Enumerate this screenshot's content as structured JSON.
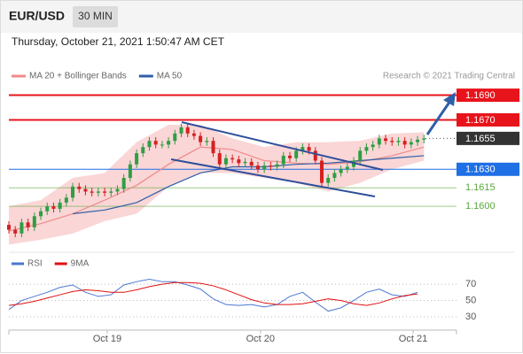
{
  "header": {
    "symbol": "EUR/USD",
    "interval": "30 MIN",
    "timestamp": "Thursday, October 21, 2021 1:50:47 AM CET",
    "source": "Research © 2021 Trading Central"
  },
  "chart_data": [
    {
      "type": "candlestick",
      "open": [
        1.1585,
        1.1581,
        1.1578,
        1.1587,
        1.1583,
        1.1592,
        1.1596,
        1.16,
        1.1598,
        1.1603,
        1.1607,
        1.1616,
        1.1614,
        1.1612,
        1.1611,
        1.1612,
        1.1611,
        1.1612,
        1.1614,
        1.1623,
        1.1634,
        1.1643,
        1.1648,
        1.1653,
        1.165,
        1.165,
        1.1653,
        1.1659,
        1.1664,
        1.1659,
        1.1657,
        1.1652,
        1.1653,
        1.1643,
        1.1634,
        1.1639,
        1.1638,
        1.1635,
        1.1636,
        1.1633,
        1.163,
        1.1633,
        1.1632,
        1.1634,
        1.1641,
        1.1639,
        1.1645,
        1.1648,
        1.1645,
        1.1637,
        1.1619,
        1.1623,
        1.1627,
        1.163,
        1.1632,
        1.1637,
        1.1645,
        1.1648,
        1.165,
        1.1655,
        1.1653,
        1.1652,
        1.1653,
        1.165,
        1.1652,
        1.1654
      ],
      "high": [
        1.1588,
        1.1584,
        1.159,
        1.159,
        1.1595,
        1.1599,
        1.1603,
        1.1603,
        1.1606,
        1.161,
        1.1619,
        1.1619,
        1.1617,
        1.1615,
        1.1615,
        1.1615,
        1.1615,
        1.1617,
        1.1626,
        1.1637,
        1.1646,
        1.1651,
        1.1656,
        1.1656,
        1.1653,
        1.1656,
        1.1662,
        1.1667,
        1.1667,
        1.1662,
        1.166,
        1.1656,
        1.1656,
        1.1646,
        1.1642,
        1.1642,
        1.1641,
        1.1639,
        1.1639,
        1.1636,
        1.1636,
        1.1636,
        1.1637,
        1.1644,
        1.1644,
        1.1648,
        1.1651,
        1.1651,
        1.1648,
        1.164,
        1.1626,
        1.163,
        1.1633,
        1.1635,
        1.164,
        1.1648,
        1.1651,
        1.1653,
        1.1658,
        1.1658,
        1.1656,
        1.1656,
        1.1656,
        1.1655,
        1.1657,
        1.1658
      ],
      "low": [
        1.1578,
        1.1575,
        1.1575,
        1.158,
        1.158,
        1.1589,
        1.1593,
        1.1595,
        1.1595,
        1.16,
        1.1604,
        1.1611,
        1.1609,
        1.1608,
        1.1608,
        1.1608,
        1.1608,
        1.1609,
        1.1611,
        1.162,
        1.1631,
        1.164,
        1.1645,
        1.1647,
        1.1647,
        1.1647,
        1.165,
        1.1656,
        1.1656,
        1.1654,
        1.1649,
        1.1649,
        1.164,
        1.1631,
        1.1631,
        1.1635,
        1.1632,
        1.1632,
        1.163,
        1.1627,
        1.1627,
        1.1629,
        1.1629,
        1.1631,
        1.1636,
        1.1636,
        1.1642,
        1.1642,
        1.1634,
        1.1616,
        1.1616,
        1.162,
        1.1624,
        1.1627,
        1.1629,
        1.1634,
        1.1642,
        1.1645,
        1.1647,
        1.165,
        1.1649,
        1.1649,
        1.1647,
        1.1647,
        1.1649,
        1.1651
      ],
      "close": [
        1.1581,
        1.1578,
        1.1587,
        1.1583,
        1.1592,
        1.1596,
        1.16,
        1.1598,
        1.1603,
        1.1607,
        1.1616,
        1.1614,
        1.1612,
        1.1611,
        1.1612,
        1.1611,
        1.1612,
        1.1614,
        1.1623,
        1.1634,
        1.1643,
        1.1648,
        1.1653,
        1.165,
        1.165,
        1.1653,
        1.1659,
        1.1664,
        1.1659,
        1.1657,
        1.1652,
        1.1653,
        1.1643,
        1.1634,
        1.1639,
        1.1638,
        1.1635,
        1.1636,
        1.1633,
        1.163,
        1.1633,
        1.1632,
        1.1634,
        1.1641,
        1.1639,
        1.1645,
        1.1648,
        1.1645,
        1.1637,
        1.1619,
        1.1623,
        1.1627,
        1.163,
        1.1632,
        1.1637,
        1.1645,
        1.1648,
        1.165,
        1.1655,
        1.1653,
        1.1652,
        1.1653,
        1.165,
        1.1652,
        1.1654,
        1.1655
      ],
      "up_color": "#2f9e44",
      "down_color": "#d62020",
      "xlim": [
        0,
        70.1
      ],
      "ylim": [
        1.157,
        1.1699
      ],
      "overlays": [
        {
          "name": "MA 20 + Bollinger Bands",
          "color": "#f08a8a",
          "x": [
            0,
            5,
            10,
            15,
            20,
            25,
            30,
            35,
            40,
            45,
            50,
            55,
            60,
            65
          ],
          "values": [
            1.158,
            1.1586,
            1.1594,
            1.1605,
            1.1617,
            1.1634,
            1.1648,
            1.1646,
            1.1637,
            1.1635,
            1.1634,
            1.1636,
            1.1641,
            1.1648
          ],
          "upper": [
            1.16,
            1.1605,
            1.1623,
            1.1627,
            1.1652,
            1.1666,
            1.1666,
            1.1655,
            1.1648,
            1.1652,
            1.1652,
            1.1653,
            1.1659,
            1.166
          ],
          "lower": [
            1.1569,
            1.1573,
            1.1578,
            1.1588,
            1.1594,
            1.1616,
            1.1627,
            1.1627,
            1.1623,
            1.1619,
            1.1612,
            1.1619,
            1.163,
            1.1637
          ]
        },
        {
          "name": "MA 50",
          "color": "#2e5fa8",
          "x": [
            10,
            15,
            20,
            25,
            30,
            35,
            40,
            45,
            50,
            55,
            60,
            65
          ],
          "values": [
            1.1594,
            1.1597,
            1.1603,
            1.1616,
            1.1627,
            1.1632,
            1.1632,
            1.1634,
            1.1635,
            1.1637,
            1.1639,
            1.1641
          ]
        }
      ],
      "levels": [
        {
          "value": 1.169,
          "label": "1.1690",
          "color": "#e8141b",
          "style": "box"
        },
        {
          "value": 1.167,
          "label": "1.1670",
          "color": "#e8141b",
          "style": "box"
        },
        {
          "value": 1.1655,
          "label": "1.1655",
          "color": "#333333",
          "style": "current"
        },
        {
          "value": 1.163,
          "label": "1.1630",
          "color": "#1f6fe5",
          "style": "box"
        },
        {
          "value": 1.1615,
          "label": "1.1615",
          "color": "#5aa83c",
          "style": "text"
        },
        {
          "value": 1.16,
          "label": "1.1600",
          "color": "#5aa83c",
          "style": "text"
        }
      ]
    },
    {
      "type": "line",
      "x": [
        0,
        2,
        4,
        6,
        8,
        10,
        12,
        14,
        16,
        18,
        20,
        22,
        24,
        26,
        28,
        30,
        32,
        34,
        36,
        38,
        40,
        42,
        44,
        46,
        48,
        50,
        52,
        54,
        56,
        58,
        60,
        62,
        64
      ],
      "series": [
        {
          "name": "RSI",
          "color": "#4a78d0",
          "values": [
            39,
            50,
            55,
            60,
            66,
            69,
            60,
            55,
            57,
            69,
            73,
            76,
            73,
            73,
            69,
            64,
            52,
            45,
            44,
            45,
            42,
            45,
            55,
            60,
            48,
            37,
            41,
            50,
            60,
            64,
            57,
            55,
            60
          ]
        },
        {
          "name": "9MA",
          "color": "#e01010",
          "values": [
            44,
            46,
            49,
            53,
            57,
            61,
            63,
            62,
            60,
            60,
            63,
            67,
            70,
            72,
            72,
            71,
            68,
            63,
            57,
            51,
            47,
            45,
            45,
            46,
            49,
            52,
            50,
            46,
            44,
            47,
            52,
            56,
            58
          ]
        }
      ],
      "xlim": [
        0,
        70.1
      ],
      "ylim": [
        17,
        82
      ],
      "yticks": [
        30,
        50,
        70
      ],
      "xticks": [
        {
          "value": 15.4,
          "label": "Oct 19"
        },
        {
          "value": 39.4,
          "label": "Oct 20"
        },
        {
          "value": 63.3,
          "label": "Oct 21"
        }
      ]
    }
  ]
}
